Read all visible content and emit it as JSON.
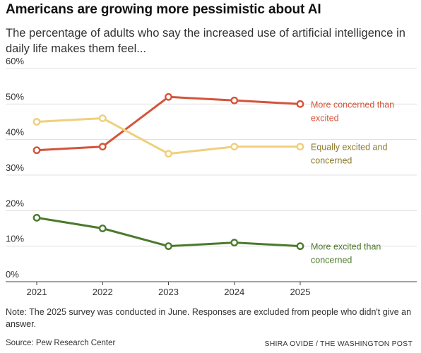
{
  "header": {
    "title": "Americans are growing more pessimistic about AI",
    "subtitle": "The percentage of adults who say the increased use of artificial intelligence in daily life makes them feel..."
  },
  "footer": {
    "note": "Note: The 2025 survey was conducted in June. Responses are excluded from people who didn't give an answer.",
    "source": "Source: Pew Research Center",
    "credit": "SHIRA OVIDE / THE WASHINGTON POST"
  },
  "chart_data": {
    "type": "line",
    "x": [
      "2021",
      "2022",
      "2023",
      "2024",
      "2025"
    ],
    "ylim": [
      0,
      60
    ],
    "yticks": [
      0,
      10,
      20,
      30,
      40,
      50,
      60
    ],
    "ytick_labels": [
      "0%",
      "10%",
      "20%",
      "30%",
      "40%",
      "50%",
      "60%"
    ],
    "grid": true,
    "legend": "inline-right",
    "series": [
      {
        "name": "More concerned than excited",
        "label_lines": [
          "More concerned than",
          "excited"
        ],
        "values": [
          37,
          38,
          52,
          51,
          50
        ],
        "color": "#d4543a"
      },
      {
        "name": "Equally excited and concerned",
        "label_lines": [
          "Equally excited and",
          "concerned"
        ],
        "values": [
          45,
          46,
          36,
          38,
          38
        ],
        "color": "#f0cf7d",
        "label_color": "#8a7a2a"
      },
      {
        "name": "More excited than concerned",
        "label_lines": [
          "More excited than",
          "concerned"
        ],
        "values": [
          18,
          15,
          10,
          11,
          10
        ],
        "color": "#4b7a2c"
      }
    ]
  }
}
